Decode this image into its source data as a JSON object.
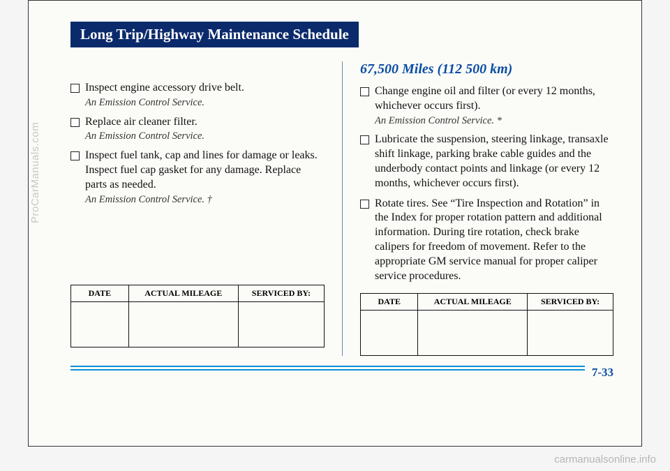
{
  "header": {
    "title": "Long Trip/Highway Maintenance Schedule",
    "bg_color": "#0b2a6b",
    "text_color": "#ffffff"
  },
  "left_column": {
    "items": [
      {
        "text": "Inspect engine accessory drive belt.",
        "note": "An Emission Control Service."
      },
      {
        "text": "Replace air cleaner filter.",
        "note": "An Emission Control Service."
      },
      {
        "text": "Inspect fuel tank, cap and lines for damage or leaks. Inspect fuel cap gasket for any damage. Replace parts as needed.",
        "note": "An Emission Control Service. †"
      }
    ]
  },
  "right_column": {
    "heading": "67,500 Miles (112 500 km)",
    "items": [
      {
        "text": "Change engine oil and filter (or every 12 months, whichever occurs first).",
        "note": "An Emission Control Service. *"
      },
      {
        "text": "Lubricate the suspension, steering linkage, transaxle shift linkage, parking brake cable guides and the underbody contact points and linkage (or every 12 months, whichever occurs first).",
        "note": ""
      },
      {
        "text": "Rotate tires. See “Tire Inspection and Rotation” in the Index for proper rotation pattern and additional information. During tire rotation, check brake calipers for freedom of movement. Refer to the appropriate GM service manual for proper caliper service procedures.",
        "note": ""
      }
    ]
  },
  "table": {
    "headers": [
      "DATE",
      "ACTUAL MILEAGE",
      "SERVICED BY:"
    ]
  },
  "page_number": "7-33",
  "watermarks": {
    "side": "ProCarManuals.com",
    "bottom": "carmanualsonline.info"
  },
  "colors": {
    "heading_blue": "#0b4da3",
    "rule_blue": "#0b8ed6",
    "page_bg": "#fbfcf8"
  }
}
